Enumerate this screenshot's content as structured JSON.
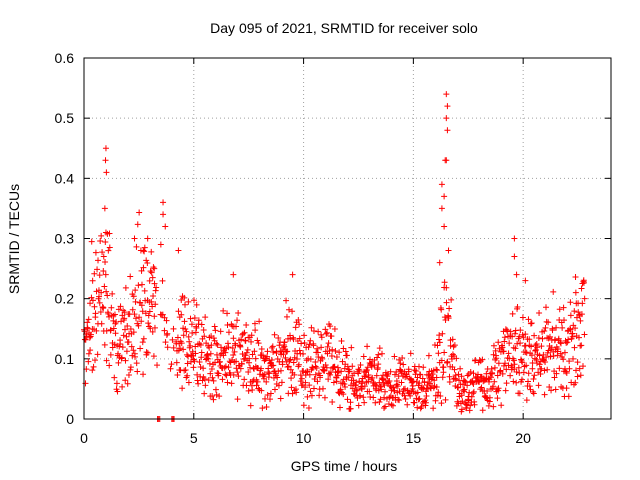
{
  "chart_data": {
    "type": "scatter",
    "title": "Day 095 of 2021, SRMTID for receiver solo",
    "xlabel": "GPS time / hours",
    "ylabel": "SRMTID / TECUs",
    "xlim": [
      0,
      24
    ],
    "ylim": [
      0,
      0.6
    ],
    "xticks": [
      0,
      5,
      10,
      15,
      20
    ],
    "xtick_labels": [
      "0",
      "5",
      "10",
      "15",
      "20"
    ],
    "yticks": [
      0,
      0.1,
      0.2,
      0.3,
      0.4,
      0.5,
      0.6
    ],
    "ytick_labels": [
      "0",
      "0.1",
      "0.2",
      "0.3",
      "0.4",
      "0.5",
      "0.6"
    ],
    "grid": true,
    "marker": "plus",
    "series": [
      {
        "name": "SRMTID",
        "color": "#ff0000",
        "profile": [
          [
            0.0,
            0.12
          ],
          [
            0.5,
            0.19
          ],
          [
            1.0,
            0.2
          ],
          [
            1.5,
            0.13
          ],
          [
            2.0,
            0.12
          ],
          [
            2.5,
            0.22
          ],
          [
            3.0,
            0.19
          ],
          [
            3.5,
            0.17
          ],
          [
            4.0,
            0.1
          ],
          [
            4.5,
            0.16
          ],
          [
            5.0,
            0.12
          ],
          [
            5.5,
            0.1
          ],
          [
            6.0,
            0.09
          ],
          [
            6.5,
            0.1
          ],
          [
            7.0,
            0.11
          ],
          [
            7.5,
            0.09
          ],
          [
            8.0,
            0.09
          ],
          [
            8.5,
            0.08
          ],
          [
            9.0,
            0.1
          ],
          [
            9.5,
            0.12
          ],
          [
            10.0,
            0.1
          ],
          [
            10.5,
            0.1
          ],
          [
            11.0,
            0.09
          ],
          [
            11.5,
            0.1
          ],
          [
            12.0,
            0.06
          ],
          [
            12.5,
            0.05
          ],
          [
            13.0,
            0.07
          ],
          [
            13.5,
            0.06
          ],
          [
            14.0,
            0.05
          ],
          [
            14.5,
            0.06
          ],
          [
            15.0,
            0.05
          ],
          [
            15.5,
            0.05
          ],
          [
            16.0,
            0.07
          ],
          [
            16.5,
            0.16
          ],
          [
            17.0,
            0.06
          ],
          [
            17.5,
            0.05
          ],
          [
            18.0,
            0.06
          ],
          [
            18.5,
            0.05
          ],
          [
            19.0,
            0.1
          ],
          [
            19.5,
            0.11
          ],
          [
            20.0,
            0.1
          ],
          [
            20.5,
            0.09
          ],
          [
            21.0,
            0.11
          ],
          [
            21.5,
            0.12
          ],
          [
            22.0,
            0.11
          ],
          [
            22.5,
            0.14
          ],
          [
            22.8,
            0.17
          ]
        ],
        "outliers": [
          [
            1.0,
            0.45
          ],
          [
            0.98,
            0.43
          ],
          [
            1.02,
            0.41
          ],
          [
            0.95,
            0.35
          ],
          [
            1.0,
            0.31
          ],
          [
            0.9,
            0.27
          ],
          [
            2.9,
            0.3
          ],
          [
            2.7,
            0.28
          ],
          [
            3.6,
            0.36
          ],
          [
            3.6,
            0.34
          ],
          [
            3.7,
            0.32
          ],
          [
            3.5,
            0.29
          ],
          [
            3.2,
            0.25
          ],
          [
            2.3,
            0.3
          ],
          [
            4.3,
            0.28
          ],
          [
            6.8,
            0.24
          ],
          [
            9.5,
            0.24
          ],
          [
            16.5,
            0.54
          ],
          [
            16.55,
            0.52
          ],
          [
            16.5,
            0.5
          ],
          [
            16.55,
            0.48
          ],
          [
            16.5,
            0.43
          ],
          [
            16.45,
            0.43
          ],
          [
            16.3,
            0.39
          ],
          [
            16.4,
            0.37
          ],
          [
            16.3,
            0.35
          ],
          [
            16.4,
            0.32
          ],
          [
            16.6,
            0.28
          ],
          [
            16.2,
            0.26
          ],
          [
            19.6,
            0.3
          ],
          [
            19.6,
            0.27
          ],
          [
            19.7,
            0.24
          ],
          [
            20.1,
            0.23
          ],
          [
            22.4,
            0.21
          ],
          [
            22.8,
            0.2
          ],
          [
            3.35,
            0.0
          ],
          [
            3.4,
            0.0
          ],
          [
            3.45,
            0.0
          ],
          [
            4.0,
            0.0
          ],
          [
            4.05,
            0.0
          ],
          [
            4.1,
            0.0
          ]
        ]
      }
    ]
  }
}
